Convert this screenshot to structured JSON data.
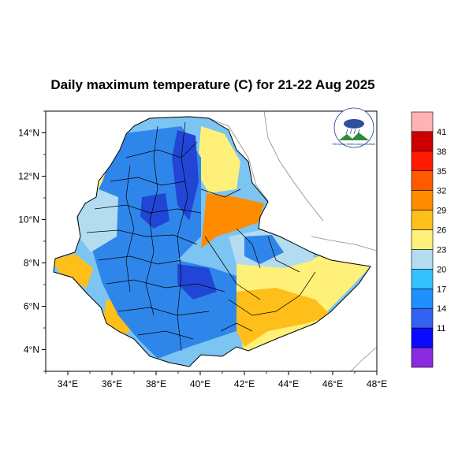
{
  "title": "Daily maximum temperature (C) for 21-22 Aug 2025",
  "map": {
    "lon_range": [
      33,
      48
    ],
    "lat_range": [
      3,
      15
    ],
    "x_ticks": [
      {
        "value": 34,
        "label": "34°E"
      },
      {
        "value": 36,
        "label": "36°E"
      },
      {
        "value": 38,
        "label": "38°E"
      },
      {
        "value": 40,
        "label": "40°E"
      },
      {
        "value": 42,
        "label": "42°E"
      },
      {
        "value": 44,
        "label": "44°E"
      },
      {
        "value": 46,
        "label": "46°E"
      },
      {
        "value": 48,
        "label": "48°E"
      }
    ],
    "y_ticks": [
      {
        "value": 4,
        "label": "4°N"
      },
      {
        "value": 6,
        "label": "6°N"
      },
      {
        "value": 8,
        "label": "8°N"
      },
      {
        "value": 10,
        "label": "10°N"
      },
      {
        "value": 12,
        "label": "12°N"
      },
      {
        "value": 14,
        "label": "14°N"
      }
    ]
  },
  "legend": {
    "labels": [
      "41",
      "38",
      "35",
      "32",
      "29",
      "26",
      "23",
      "20",
      "17",
      "14",
      "11"
    ],
    "colors": [
      "#ffb3b3",
      "#cc0000",
      "#ff1a00",
      "#ff5a00",
      "#ff8c00",
      "#ffbf1a",
      "#fff07a",
      "#b3dcf0",
      "#33c1ff",
      "#1e90ff",
      "#3262f0",
      "#0a0aff",
      "#8a2be2"
    ]
  },
  "colors": {
    "base_ethiopia": "#7cc4f2",
    "cool_blue": "#2f86ea",
    "dark_blue": "#2146d6",
    "deep_blue": "#0a1ae6",
    "light_blue": "#b3dcf0",
    "yellow": "#fff07a",
    "orange_yellow": "#ffbf1a",
    "orange": "#ff8c00",
    "country_border": "#888888",
    "admin_border": "#000000"
  },
  "logo": {
    "text": "Ethiopian Meteorology Institute"
  }
}
